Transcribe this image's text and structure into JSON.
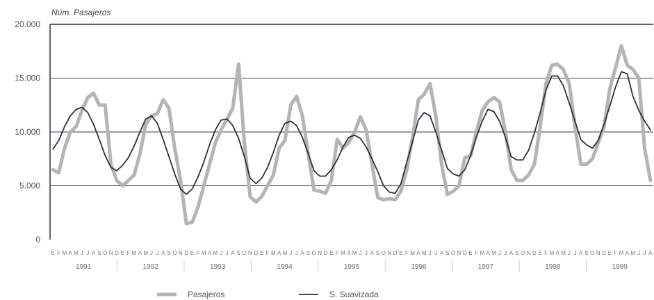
{
  "chart_data": {
    "type": "line",
    "ylabel": "Núm. Pasajeros",
    "ylim": [
      0,
      20000
    ],
    "yticks": [
      0,
      5000,
      10000,
      15000,
      20000
    ],
    "ytick_labels": [
      "0",
      "5.000",
      "10.000",
      "15.000",
      "20.000"
    ],
    "years": [
      "1991",
      "1992",
      "1993",
      "1994",
      "1995",
      "1996",
      "1997",
      "1998",
      "1999"
    ],
    "month_labels": [
      "E",
      "F",
      "M",
      "A",
      "M",
      "J",
      "J",
      "A",
      "S",
      "O",
      "N",
      "D"
    ],
    "grid": true,
    "legend_position": "bottom",
    "series": [
      {
        "name": "Pasajeros",
        "color": "#b4b4b4",
        "values": [
          6500,
          6200,
          8500,
          10000,
          10500,
          12000,
          13200,
          13600,
          12500,
          12500,
          7000,
          5500,
          5000,
          5500,
          6000,
          8000,
          10700,
          11500,
          11700,
          13000,
          12200,
          8500,
          5500,
          1500,
          1600,
          3000,
          5000,
          7000,
          9000,
          10200,
          11200,
          12200,
          16300,
          9000,
          4000,
          3500,
          4000,
          5000,
          6000,
          8500,
          9200,
          12500,
          13300,
          11500,
          8000,
          4600,
          4500,
          4300,
          5500,
          9300,
          8500,
          9000,
          10000,
          11400,
          10200,
          7000,
          3900,
          3700,
          3800,
          3700,
          4500,
          6500,
          9500,
          13000,
          13500,
          14500,
          11500,
          7000,
          4200,
          4500,
          5000,
          7600,
          7800,
          10000,
          12000,
          12800,
          13200,
          12800,
          10000,
          6500,
          5500,
          5500,
          6000,
          7000,
          10500,
          14500,
          16200,
          16300,
          15800,
          14500,
          10500,
          7000,
          7000,
          7500,
          9000,
          10500,
          14000,
          16000,
          18000,
          16200,
          15800,
          15000,
          8500,
          5500
        ]
      },
      {
        "name": "S. Suavizada",
        "color": "#2e2e3a",
        "values": [
          8400,
          9200,
          10500,
          11500,
          12100,
          12300,
          11800,
          10700,
          9300,
          7800,
          6700,
          6400,
          6900,
          7600,
          8700,
          10000,
          11200,
          11500,
          10800,
          9300,
          7700,
          6100,
          4700,
          4200,
          4700,
          5800,
          7200,
          8800,
          10200,
          11100,
          11200,
          10600,
          9400,
          7700,
          5700,
          5200,
          5700,
          6700,
          8100,
          9700,
          10800,
          11000,
          10600,
          9500,
          8000,
          6400,
          5900,
          5900,
          6500,
          7400,
          8600,
          9500,
          9700,
          9400,
          8600,
          7500,
          6300,
          5000,
          4400,
          4300,
          5200,
          7200,
          9100,
          11100,
          11800,
          11500,
          10000,
          8300,
          6600,
          6100,
          5900,
          6500,
          7800,
          9500,
          11000,
          12100,
          11900,
          11000,
          9500,
          7700,
          7400,
          7400,
          8300,
          9900,
          11800,
          13900,
          15200,
          15200,
          14300,
          12700,
          11000,
          9300,
          8800,
          8500,
          9200,
          10700,
          12400,
          14200,
          15600,
          15400,
          13300,
          12000,
          11000,
          10200
        ]
      }
    ]
  }
}
